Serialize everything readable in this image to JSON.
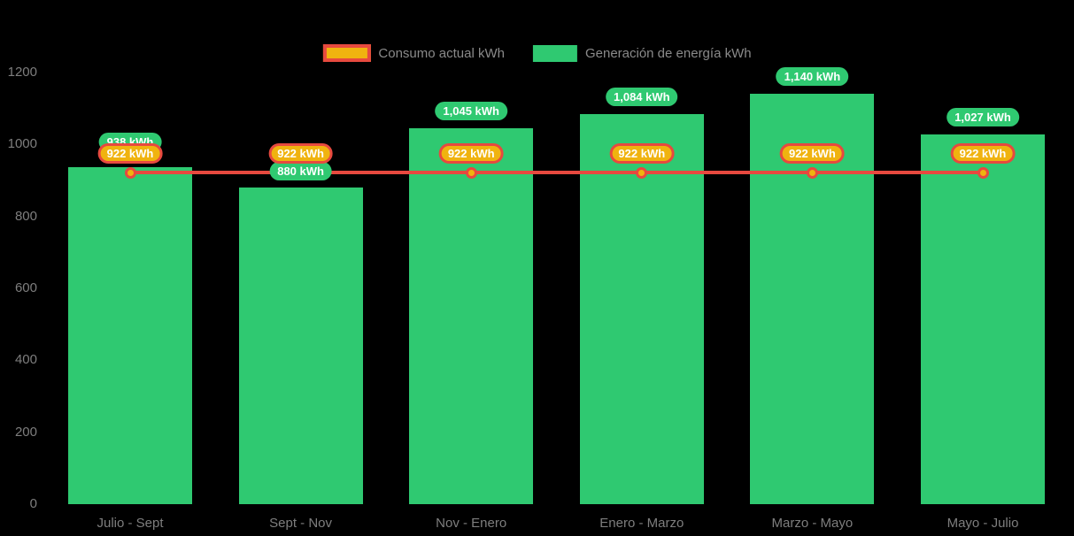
{
  "background": "#000000",
  "colors": {
    "bar_green": "#2FC971",
    "line_red": "#E7493F",
    "marker_amber": "#F0B30F",
    "axis_text": "#7E7E7E",
    "legend_text": "#8A8A8A",
    "pill_text": "#FFFFFF"
  },
  "legend": {
    "items": [
      {
        "id": "consumo",
        "label": "Consumo actual kWh",
        "swatch": "amber-line-red-border"
      },
      {
        "id": "generacion",
        "label": "Generación de energía kWh",
        "swatch": "green-bar"
      }
    ]
  },
  "chart_data": {
    "type": "bar",
    "title": "",
    "xlabel": "",
    "ylabel": "",
    "ylim": [
      0,
      1200
    ],
    "yticks": [
      "0",
      "200",
      "400",
      "600",
      "800",
      "1000",
      "1200"
    ],
    "grid": false,
    "legend_position": "top-center",
    "categories": [
      "Julio - Sept",
      "Sept - Nov",
      "Nov - Enero",
      "Enero - Marzo",
      "Marzo - Mayo",
      "Mayo - Julio"
    ],
    "series": [
      {
        "name": "Generación de energía kWh",
        "type": "bar",
        "color": "#2FC971",
        "values": [
          938,
          880,
          1045,
          1084,
          1140,
          1027
        ],
        "data_labels": [
          "938 kWh",
          "880 kWh",
          "1,045 kWh",
          "1,084 kWh",
          "1,140 kWh",
          "1,027 kWh"
        ]
      },
      {
        "name": "Consumo actual kWh",
        "type": "line",
        "color": "#E7493F",
        "marker_color": "#F0B30F",
        "values": [
          922,
          922,
          922,
          922,
          922,
          922
        ],
        "data_labels": [
          "922 kWh",
          "922 kWh",
          "922 kWh",
          "922 kWh",
          "922 kWh",
          "922 kWh"
        ]
      }
    ]
  }
}
